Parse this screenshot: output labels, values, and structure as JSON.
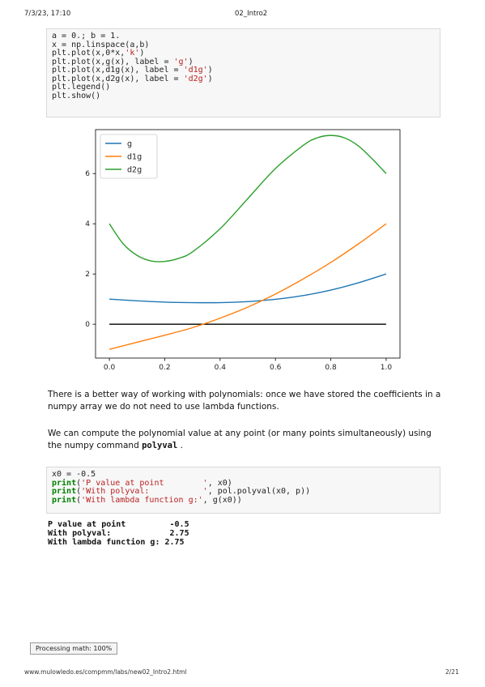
{
  "header": {
    "left": "7/3/23, 17:10",
    "center": "02_Intro2"
  },
  "cell1": {
    "lines": [
      [
        {
          "t": "a = 0.; b = 1."
        }
      ],
      [
        {
          "t": "x = np.linspace(a,b)"
        }
      ],
      [
        {
          "t": "plt.plot(x,0*x,"
        },
        {
          "t": "'k'",
          "c": "str"
        },
        {
          "t": ")"
        }
      ],
      [
        {
          "t": "plt.plot(x,g(x), label = "
        },
        {
          "t": "'g'",
          "c": "str"
        },
        {
          "t": ")"
        }
      ],
      [
        {
          "t": "plt.plot(x,d1g(x), label = "
        },
        {
          "t": "'d1g'",
          "c": "str"
        },
        {
          "t": ")"
        }
      ],
      [
        {
          "t": "plt.plot(x,d2g(x), label = "
        },
        {
          "t": "'d2g'",
          "c": "str"
        },
        {
          "t": ")"
        }
      ],
      [
        {
          "t": "plt.legend()"
        }
      ],
      [
        {
          "t": "plt.show()"
        }
      ]
    ]
  },
  "chart_data": {
    "type": "line",
    "xlim": [
      -0.05,
      1.05
    ],
    "ylim": [
      -1.35,
      7.75
    ],
    "xticks": [
      "0.0",
      "0.2",
      "0.4",
      "0.6",
      "0.8",
      "1.0"
    ],
    "yticks": [
      "0",
      "2",
      "4",
      "6"
    ],
    "legend_position": "top-left",
    "grid": false,
    "series": [
      {
        "name": "",
        "color": "#000000",
        "x": [
          0,
          1
        ],
        "y": [
          0,
          0
        ]
      },
      {
        "name": "g",
        "color": "#1f77b4",
        "x": [
          0,
          0.1,
          0.2,
          0.3,
          0.4,
          0.5,
          0.6,
          0.7,
          0.8,
          0.9,
          1.0
        ],
        "y": [
          1.0,
          0.93,
          0.88,
          0.86,
          0.86,
          0.9,
          0.99,
          1.14,
          1.36,
          1.65,
          2.0
        ]
      },
      {
        "name": "d1g",
        "color": "#ff7f0e",
        "x": [
          0,
          0.1,
          0.2,
          0.3,
          0.4,
          0.5,
          0.6,
          0.7,
          0.8,
          0.9,
          1.0
        ],
        "y": [
          -1.0,
          -0.72,
          -0.44,
          -0.14,
          0.24,
          0.68,
          1.2,
          1.8,
          2.46,
          3.2,
          4.0
        ]
      },
      {
        "name": "d2g",
        "color": "#2ca02c",
        "x": [
          0,
          0.05,
          0.1,
          0.15,
          0.2,
          0.25,
          0.3,
          0.4,
          0.5,
          0.6,
          0.7,
          0.75,
          0.8,
          0.85,
          0.9,
          0.95,
          1.0
        ],
        "y": [
          4.0,
          3.2,
          2.74,
          2.52,
          2.5,
          2.62,
          2.88,
          3.8,
          5.0,
          6.2,
          7.12,
          7.42,
          7.52,
          7.42,
          7.1,
          6.58,
          6.0
        ]
      }
    ]
  },
  "para1": "There is a better way of working with polynomials: once we have stored the coefficients in a numpy array we do not need to use lambda functions.",
  "para2_pre": "We can compute the polynomial value at any point (or many points simultaneously) using the numpy command ",
  "para2_code": "polyval",
  "para2_post": " .",
  "cell2": {
    "lines": [
      [
        {
          "t": "x0 = -0.5"
        }
      ],
      [
        {
          "t": "print",
          "c": "kw"
        },
        {
          "t": "("
        },
        {
          "t": "'P value at point        '",
          "c": "str"
        },
        {
          "t": ", x0)"
        }
      ],
      [
        {
          "t": "print",
          "c": "kw"
        },
        {
          "t": "("
        },
        {
          "t": "'With polyval:           '",
          "c": "str"
        },
        {
          "t": ", pol.polyval(x0, p))"
        }
      ],
      [
        {
          "t": "print",
          "c": "kw"
        },
        {
          "t": "("
        },
        {
          "t": "'With lambda function g:'",
          "c": "str"
        },
        {
          "t": ", g(x0))"
        }
      ]
    ]
  },
  "output": [
    "P value at point         -0.5",
    "With polyval:            2.75",
    "With lambda function g: 2.75"
  ],
  "status": "Processing math: 100%",
  "footer": {
    "url": "www.mulowledo.es/compmm/labs/new02_Intro2.html",
    "page": "2/21"
  }
}
